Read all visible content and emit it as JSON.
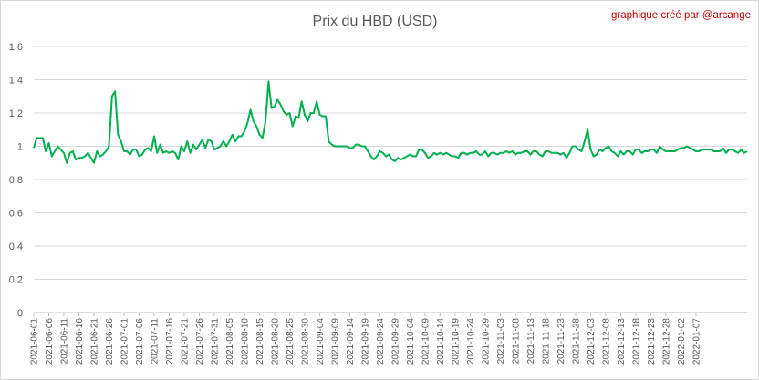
{
  "chart_data": {
    "type": "line",
    "title": "Prix du HBD (USD)",
    "credit": "graphique créé par @arcange",
    "series_color": "#00b050",
    "grid": true,
    "ylim": [
      0,
      1.6
    ],
    "yticks": [
      "0",
      "0,2",
      "0,4",
      "0,6",
      "0,8",
      "1",
      "1,2",
      "1,4",
      "1,6"
    ],
    "xtick_labels": [
      "2021-06-01",
      "2021-06-06",
      "2021-06-11",
      "2021-06-16",
      "2021-06-21",
      "2021-06-26",
      "2021-07-01",
      "2021-07-06",
      "2021-07-11",
      "2021-07-16",
      "2021-07-21",
      "2021-07-26",
      "2021-07-31",
      "2021-08-05",
      "2021-08-10",
      "2021-08-15",
      "2021-08-20",
      "2021-08-25",
      "2021-08-30",
      "2021-09-04",
      "2021-09-09",
      "2021-09-14",
      "2021-09-19",
      "2021-09-24",
      "2021-09-29",
      "2021-10-04",
      "2021-10-09",
      "2021-10-14",
      "2021-10-19",
      "2021-10-24",
      "2021-10-29",
      "2021-11-03",
      "2021-11-08",
      "2021-11-13",
      "2021-11-18",
      "2021-11-23",
      "2021-11-28",
      "2021-12-03",
      "2021-12-08",
      "2021-12-13",
      "2021-12-18",
      "2021-12-23",
      "2021-12-28",
      "2022-01-02",
      "2022-01-07"
    ],
    "x_start": "2021-06-01",
    "values": [
      0.99,
      1.05,
      1.05,
      1.05,
      0.97,
      1.02,
      0.94,
      0.97,
      1.0,
      0.98,
      0.96,
      0.9,
      0.96,
      0.97,
      0.92,
      0.93,
      0.93,
      0.94,
      0.96,
      0.93,
      0.9,
      0.97,
      0.94,
      0.95,
      0.97,
      1.0,
      1.3,
      1.33,
      1.07,
      1.03,
      0.97,
      0.97,
      0.95,
      0.98,
      0.98,
      0.94,
      0.95,
      0.98,
      0.99,
      0.97,
      1.06,
      0.96,
      1.01,
      0.96,
      0.97,
      0.96,
      0.97,
      0.96,
      0.92,
      1.0,
      0.97,
      1.03,
      0.96,
      1.01,
      0.98,
      1.01,
      1.04,
      0.99,
      1.04,
      1.03,
      0.98,
      0.99,
      1.0,
      1.03,
      1.0,
      1.03,
      1.07,
      1.03,
      1.06,
      1.06,
      1.09,
      1.14,
      1.22,
      1.15,
      1.12,
      1.07,
      1.05,
      1.15,
      1.39,
      1.23,
      1.24,
      1.28,
      1.25,
      1.21,
      1.19,
      1.2,
      1.12,
      1.18,
      1.17,
      1.27,
      1.19,
      1.15,
      1.2,
      1.2,
      1.27,
      1.19,
      1.18,
      1.18,
      1.03,
      1.01,
      1.0,
      1.0,
      1.0,
      1.0,
      1.0,
      0.99,
      0.99,
      1.01,
      1.01,
      1.0,
      1.0,
      0.97,
      0.94,
      0.92,
      0.94,
      0.97,
      0.96,
      0.94,
      0.95,
      0.92,
      0.91,
      0.93,
      0.92,
      0.93,
      0.94,
      0.95,
      0.94,
      0.94,
      0.98,
      0.98,
      0.96,
      0.93,
      0.94,
      0.96,
      0.95,
      0.96,
      0.95,
      0.96,
      0.95,
      0.94,
      0.94,
      0.93,
      0.96,
      0.96,
      0.95,
      0.96,
      0.96,
      0.97,
      0.95,
      0.95,
      0.97,
      0.94,
      0.96,
      0.96,
      0.95,
      0.96,
      0.96,
      0.97,
      0.96,
      0.97,
      0.95,
      0.96,
      0.96,
      0.97,
      0.97,
      0.95,
      0.97,
      0.97,
      0.95,
      0.94,
      0.97,
      0.97,
      0.96,
      0.96,
      0.96,
      0.95,
      0.96,
      0.93,
      0.96,
      1.0,
      1.0,
      0.98,
      0.97,
      1.03,
      1.1,
      0.98,
      0.94,
      0.95,
      0.98,
      0.97,
      0.99,
      1.0,
      0.97,
      0.96,
      0.94,
      0.97,
      0.95,
      0.97,
      0.97,
      0.95,
      0.98,
      0.98,
      0.96,
      0.97,
      0.97,
      0.98,
      0.98,
      0.96,
      1.0,
      0.98,
      0.97,
      0.97,
      0.97,
      0.97,
      0.98,
      0.99,
      0.99,
      1.0,
      0.99,
      0.98,
      0.97,
      0.97,
      0.98,
      0.98,
      0.98,
      0.98,
      0.97,
      0.97,
      0.97,
      0.99,
      0.96,
      0.98,
      0.98,
      0.97,
      0.96,
      0.98,
      0.96,
      0.97
    ]
  }
}
